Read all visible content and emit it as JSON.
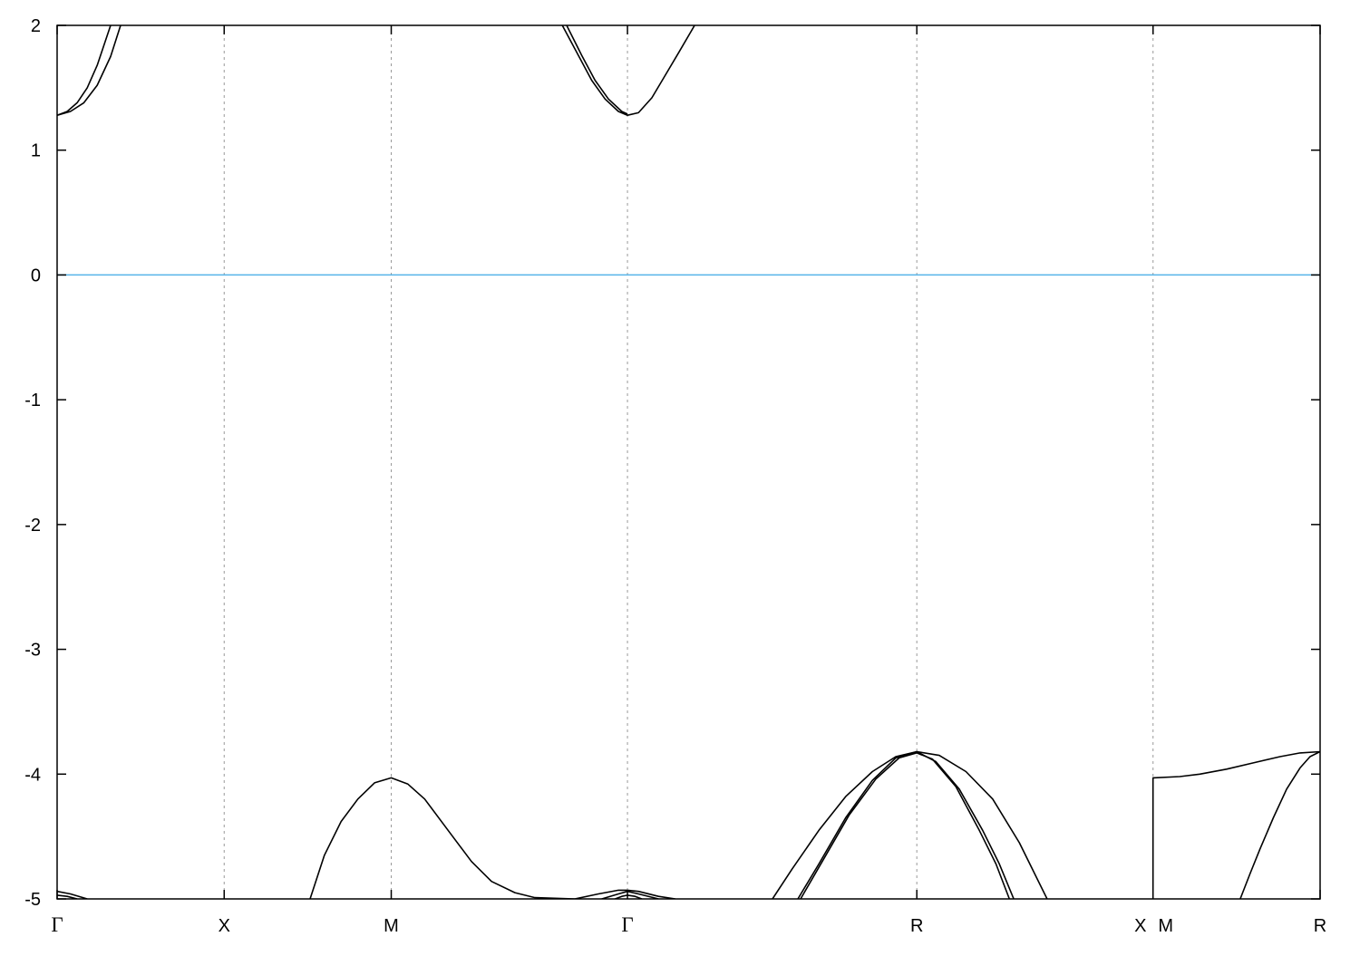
{
  "chart_data": {
    "type": "line",
    "title": "",
    "xlabel": "",
    "ylabel": "",
    "ylim": [
      -5,
      2
    ],
    "yticks": [
      -5,
      -4,
      -3,
      -2,
      -1,
      0,
      1,
      2
    ],
    "xlim": [
      0,
      3.78
    ],
    "kpoints": [
      {
        "label": "Γ",
        "k": 0
      },
      {
        "label": "X",
        "k": 0.5
      },
      {
        "label": "M",
        "k": 1.0
      },
      {
        "label": "Γ",
        "k": 1.707
      },
      {
        "label": "R",
        "k": 2.573
      },
      {
        "label": "X",
        "k": 3.28
      },
      {
        "label": "M",
        "k": 3.28
      },
      {
        "label": "R",
        "k": 3.78
      }
    ],
    "grid": "vertical dashed at k-points",
    "fermi_level": {
      "value": 0,
      "color": "#56B4E9"
    },
    "band_color": "#000000",
    "series": [
      {
        "values": [
          [
            0,
            1.28
          ],
          [
            0.03,
            1.31
          ],
          [
            0.06,
            1.38
          ],
          [
            0.09,
            1.5
          ],
          [
            0.12,
            1.68
          ],
          [
            0.16,
            2.0
          ]
        ]
      },
      {
        "values": [
          [
            0,
            1.28
          ],
          [
            0.04,
            1.31
          ],
          [
            0.08,
            1.38
          ],
          [
            0.12,
            1.52
          ],
          [
            0.16,
            1.75
          ],
          [
            0.19,
            2.0
          ]
        ]
      },
      {
        "values": [
          [
            1.512,
            2.0
          ],
          [
            1.56,
            1.76
          ],
          [
            1.6,
            1.56
          ],
          [
            1.64,
            1.41
          ],
          [
            1.68,
            1.31
          ],
          [
            1.707,
            1.28
          ],
          [
            1.74,
            1.3
          ],
          [
            1.78,
            1.42
          ],
          [
            1.82,
            1.6
          ],
          [
            1.86,
            1.78
          ],
          [
            1.908,
            2.0
          ]
        ]
      },
      {
        "values": [
          [
            1.525,
            2.0
          ],
          [
            1.57,
            1.76
          ],
          [
            1.61,
            1.56
          ],
          [
            1.65,
            1.41
          ],
          [
            1.69,
            1.31
          ],
          [
            1.707,
            1.29
          ]
        ]
      },
      {
        "values": [
          [
            0.757,
            -5.0
          ],
          [
            0.8,
            -4.65
          ],
          [
            0.85,
            -4.38
          ],
          [
            0.9,
            -4.2
          ],
          [
            0.95,
            -4.07
          ],
          [
            1.0,
            -4.03
          ],
          [
            1.05,
            -4.08
          ],
          [
            1.1,
            -4.2
          ],
          [
            1.17,
            -4.45
          ],
          [
            1.24,
            -4.7
          ],
          [
            1.3,
            -4.86
          ],
          [
            1.37,
            -4.95
          ],
          [
            1.43,
            -4.99
          ],
          [
            1.55,
            -5.0
          ]
        ]
      },
      {
        "values": [
          [
            1.55,
            -5.0
          ],
          [
            1.62,
            -4.96
          ],
          [
            1.68,
            -4.93
          ],
          [
            1.707,
            -4.93
          ],
          [
            1.74,
            -4.94
          ],
          [
            1.8,
            -4.98
          ],
          [
            1.85,
            -5.0
          ]
        ]
      },
      {
        "values": [
          [
            1.63,
            -5.0
          ],
          [
            1.68,
            -4.96
          ],
          [
            1.707,
            -4.94
          ],
          [
            1.74,
            -4.96
          ],
          [
            1.8,
            -5.0
          ]
        ]
      },
      {
        "values": [
          [
            1.67,
            -5.0
          ],
          [
            1.69,
            -4.98
          ],
          [
            1.707,
            -4.97
          ],
          [
            1.73,
            -4.98
          ],
          [
            1.75,
            -5.0
          ]
        ]
      },
      {
        "values": [
          [
            0,
            -4.94
          ],
          [
            0.04,
            -4.96
          ],
          [
            0.09,
            -5.0
          ]
        ]
      },
      {
        "values": [
          [
            0,
            -4.97
          ],
          [
            0.03,
            -4.98
          ],
          [
            0.06,
            -5.0
          ]
        ]
      },
      {
        "values": [
          [
            2.141,
            -5.0
          ],
          [
            2.2,
            -4.76
          ],
          [
            2.28,
            -4.45
          ],
          [
            2.36,
            -4.18
          ],
          [
            2.44,
            -3.98
          ],
          [
            2.51,
            -3.86
          ],
          [
            2.573,
            -3.82
          ],
          [
            2.64,
            -3.85
          ],
          [
            2.72,
            -3.98
          ],
          [
            2.8,
            -4.2
          ],
          [
            2.88,
            -4.55
          ],
          [
            2.963,
            -5.0
          ]
        ]
      },
      {
        "values": [
          [
            2.217,
            -5.0
          ],
          [
            2.28,
            -4.72
          ],
          [
            2.36,
            -4.35
          ],
          [
            2.44,
            -4.05
          ],
          [
            2.51,
            -3.87
          ],
          [
            2.573,
            -3.82
          ],
          [
            2.63,
            -3.9
          ],
          [
            2.7,
            -4.12
          ],
          [
            2.77,
            -4.45
          ],
          [
            2.82,
            -4.72
          ],
          [
            2.863,
            -5.0
          ]
        ]
      },
      {
        "values": [
          [
            2.225,
            -5.0
          ],
          [
            2.29,
            -4.7
          ],
          [
            2.37,
            -4.33
          ],
          [
            2.45,
            -4.04
          ],
          [
            2.52,
            -3.87
          ],
          [
            2.573,
            -3.83
          ],
          [
            2.62,
            -3.88
          ],
          [
            2.69,
            -4.1
          ],
          [
            2.76,
            -4.45
          ],
          [
            2.81,
            -4.72
          ],
          [
            2.85,
            -5.0
          ]
        ]
      },
      {
        "values": [
          [
            3.28,
            -5.0
          ],
          [
            3.28,
            -4.03
          ],
          [
            3.36,
            -4.02
          ],
          [
            3.42,
            -4.0
          ],
          [
            3.5,
            -3.96
          ],
          [
            3.58,
            -3.91
          ],
          [
            3.66,
            -3.86
          ],
          [
            3.72,
            -3.83
          ],
          [
            3.78,
            -3.82
          ]
        ]
      },
      {
        "values": [
          [
            3.541,
            -5.0
          ],
          [
            3.57,
            -4.8
          ],
          [
            3.6,
            -4.6
          ],
          [
            3.64,
            -4.35
          ],
          [
            3.68,
            -4.12
          ],
          [
            3.72,
            -3.95
          ],
          [
            3.75,
            -3.86
          ],
          [
            3.78,
            -3.82
          ]
        ]
      }
    ]
  }
}
